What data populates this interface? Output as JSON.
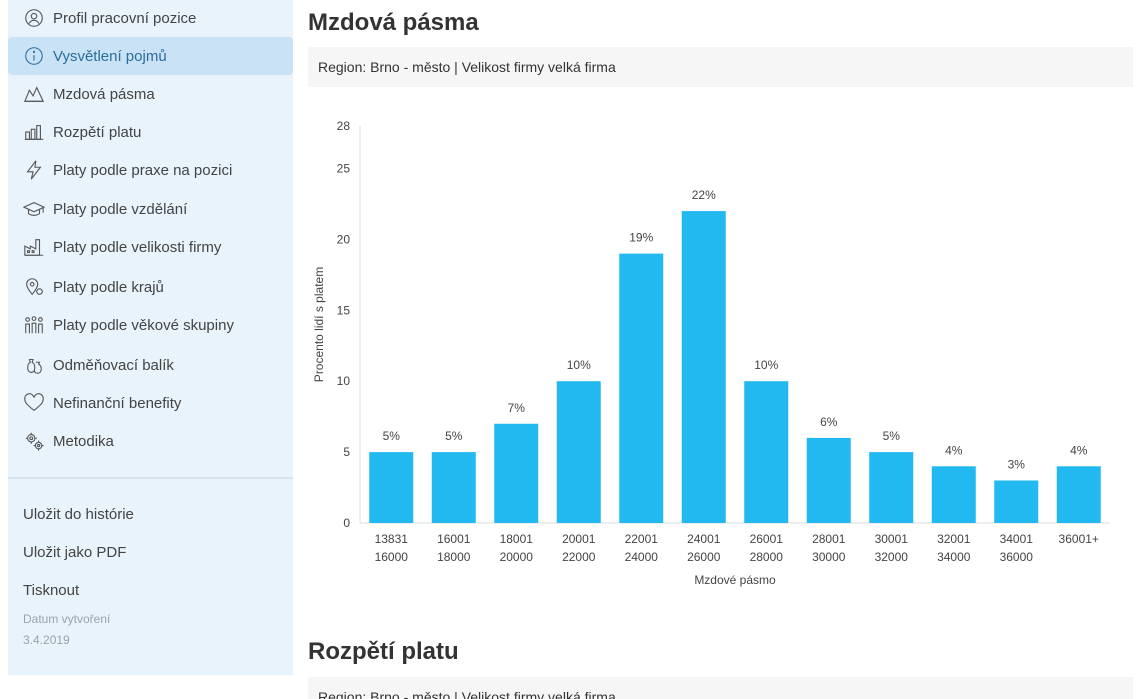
{
  "sidebar": {
    "items": [
      {
        "label": "Profil pracovní pozice",
        "icon": "user-circle-icon"
      },
      {
        "label": "Vysvětlení pojmů",
        "icon": "info-icon",
        "active": true
      },
      {
        "label": "Mzdová pásma",
        "icon": "area-chart-icon"
      },
      {
        "label": "Rozpětí platu",
        "icon": "bar-chart-icon"
      },
      {
        "label": "Platy podle praxe na pozici",
        "icon": "lightning-icon"
      },
      {
        "label": "Platy podle vzdělání",
        "icon": "graduation-cap-icon"
      },
      {
        "label": "Platy podle velikosti firmy",
        "icon": "factory-icon"
      },
      {
        "label": "Platy podle krajů",
        "icon": "map-pin-icon"
      },
      {
        "label": "Platy podle věkové skupiny",
        "icon": "people-icon"
      },
      {
        "label": "Odměňovací balík",
        "icon": "money-bags-icon"
      },
      {
        "label": "Nefinanční benefity",
        "icon": "heart-icon"
      },
      {
        "label": "Metodika",
        "icon": "gears-icon"
      }
    ],
    "actions": {
      "save_history": "Uložit do histórie",
      "save_pdf": "Uložit jako PDF",
      "print": "Tisknout"
    },
    "created_label": "Datum vytvoření",
    "created_date": "3.4.2019"
  },
  "main": {
    "section1_title": "Mzdová pásma",
    "region_text": "Region: Brno - město | Velikost firmy velká firma",
    "section2_title": "Rozpětí platu",
    "region_text2": "Region: Brno - město | Velikost firmy velká firma"
  },
  "chart_data": {
    "type": "bar",
    "categories": [
      [
        "13831",
        "16000"
      ],
      [
        "16001",
        "18000"
      ],
      [
        "18001",
        "20000"
      ],
      [
        "20001",
        "22000"
      ],
      [
        "22001",
        "24000"
      ],
      [
        "24001",
        "26000"
      ],
      [
        "26001",
        "28000"
      ],
      [
        "28001",
        "30000"
      ],
      [
        "30001",
        "32000"
      ],
      [
        "32001",
        "34000"
      ],
      [
        "34001",
        "36000"
      ],
      [
        "36001+"
      ]
    ],
    "values": [
      5,
      5,
      7,
      10,
      19,
      22,
      10,
      6,
      5,
      4,
      3,
      4
    ],
    "data_labels": [
      "5%",
      "5%",
      "7%",
      "10%",
      "19%",
      "22%",
      "10%",
      "6%",
      "5%",
      "4%",
      "3%",
      "4%"
    ],
    "xlabel": "Mzdové pásmo",
    "ylabel": "Procento lidí s platem",
    "ylim": [
      0,
      28
    ],
    "yticks": [
      0,
      5,
      10,
      15,
      20,
      25,
      28
    ],
    "bar_color": "#22b9f0"
  }
}
